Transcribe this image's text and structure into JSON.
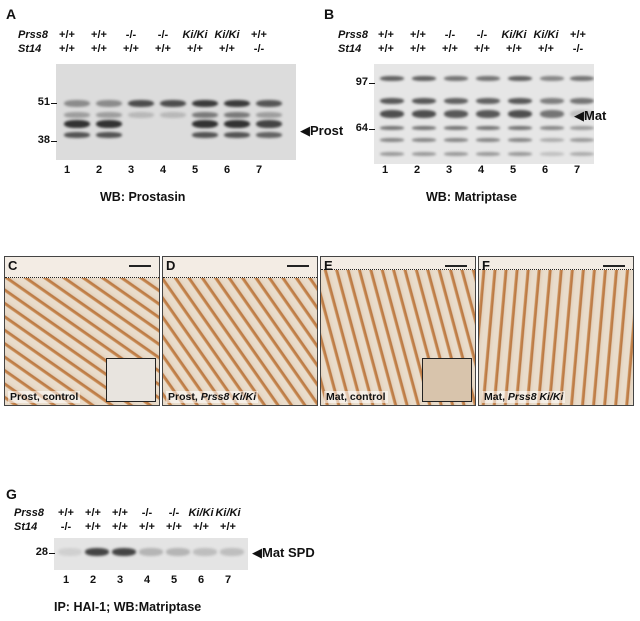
{
  "panel_A": {
    "letter": "A",
    "genotype_rows": [
      {
        "label": "Prss8",
        "values": [
          "+/+",
          "+/+",
          "-/-",
          "-/-",
          "Ki/Ki",
          "Ki/Ki",
          "+/+"
        ]
      },
      {
        "label": "St14",
        "values": [
          "+/+",
          "+/+",
          "+/+",
          "+/+",
          "+/+",
          "+/+",
          "-/-"
        ]
      }
    ],
    "markers": [
      "51",
      "38"
    ],
    "lanes": [
      "1",
      "2",
      "3",
      "4",
      "5",
      "6",
      "7"
    ],
    "band_label": "Prost",
    "caption": "WB: Prostasin"
  },
  "panel_B": {
    "letter": "B",
    "genotype_rows": [
      {
        "label": "Prss8",
        "values": [
          "+/+",
          "+/+",
          "-/-",
          "-/-",
          "Ki/Ki",
          "Ki/Ki",
          "+/+"
        ]
      },
      {
        "label": "St14",
        "values": [
          "+/+",
          "+/+",
          "+/+",
          "+/+",
          "+/+",
          "+/+",
          "-/-"
        ]
      }
    ],
    "markers": [
      "97",
      "64"
    ],
    "lanes": [
      "1",
      "2",
      "3",
      "4",
      "5",
      "6",
      "7"
    ],
    "band_label": "Mat",
    "caption": "WB: Matriptase"
  },
  "micrographs": [
    {
      "letter": "C",
      "label_plain": "Prost, control",
      "label_italic": ""
    },
    {
      "letter": "D",
      "label_plain": "Prost, ",
      "label_italic": "Prss8 Ki/Ki"
    },
    {
      "letter": "E",
      "label_plain": "Mat, control",
      "label_italic": ""
    },
    {
      "letter": "F",
      "label_plain": "Mat, ",
      "label_italic": "Prss8 Ki/Ki"
    }
  ],
  "panel_G": {
    "letter": "G",
    "genotype_rows": [
      {
        "label": "Prss8",
        "values": [
          "+/+",
          "+/+",
          "+/+",
          "-/-",
          "-/-",
          "Ki/Ki",
          "Ki/Ki"
        ]
      },
      {
        "label": "St14",
        "values": [
          "-/-",
          "+/+",
          "+/+",
          "+/+",
          "+/+",
          "+/+",
          "+/+"
        ]
      }
    ],
    "markers": [
      "28"
    ],
    "lanes": [
      "1",
      "2",
      "3",
      "4",
      "5",
      "6",
      "7"
    ],
    "band_label": "Mat SPD",
    "caption": "IP: HAI-1; WB:Matriptase"
  },
  "colors": {
    "blot_bg": "#dcdcdc",
    "band_dark": "#3a3a3a",
    "tissue_brown": "#b8753f",
    "tissue_bg": "#e9dccb"
  }
}
